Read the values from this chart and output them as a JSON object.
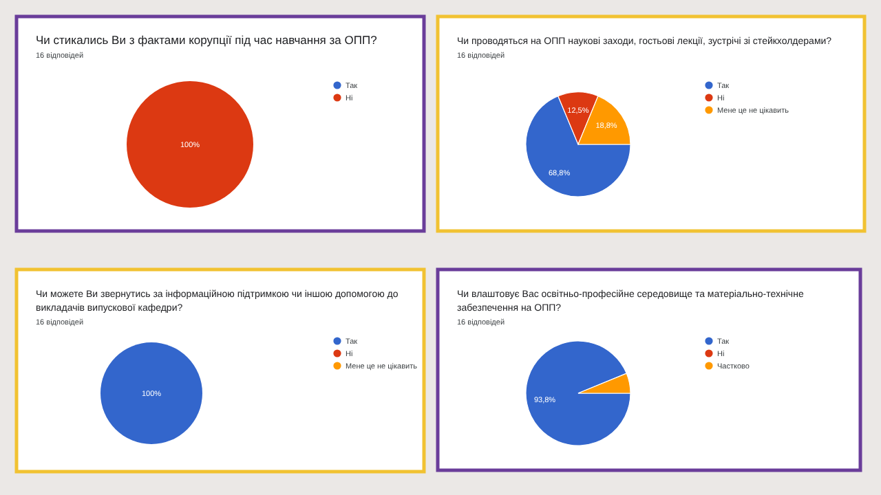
{
  "chart_data": [
    {
      "type": "pie",
      "title": "Чи стикались Ви з фактами корупції під час навчання за ОПП?",
      "subtitle": "16 відповідей",
      "categories": [
        "Так",
        "Ні"
      ],
      "values": [
        0,
        100
      ],
      "colors": [
        "#3366cc",
        "#dc3912"
      ],
      "value_labels": [
        null,
        "100%"
      ],
      "legend": "right"
    },
    {
      "type": "pie",
      "title": "Чи проводяться на ОПП наукові заходи, гостьові лекції, зустрічі зі стейкхолдерами?",
      "subtitle": "16 відповідей",
      "categories": [
        "Так",
        "Ні",
        "Мене це не цікавить"
      ],
      "values": [
        68.8,
        12.5,
        18.8
      ],
      "colors": [
        "#3366cc",
        "#dc3912",
        "#ff9900"
      ],
      "value_labels": [
        "68,8%",
        "12,5%",
        "18,8%"
      ],
      "legend": "right"
    },
    {
      "type": "pie",
      "title": "Чи можете Ви звернутись за інформаційною підтримкою чи іншою допомогою до викладачів випускової кафедри?",
      "subtitle": "16 відповідей",
      "categories": [
        "Так",
        "Ні",
        "Мене це не цікавить"
      ],
      "values": [
        100,
        0,
        0
      ],
      "colors": [
        "#3366cc",
        "#dc3912",
        "#ff9900"
      ],
      "value_labels": [
        "100%",
        null,
        null
      ],
      "legend": "right"
    },
    {
      "type": "pie",
      "title": "Чи влаштовує Вас освітньо-професійне середовище та матеріально-технічне забезпечення на ОПП?",
      "subtitle": "16 відповідей",
      "categories": [
        "Так",
        "Ні",
        "Частково"
      ],
      "values": [
        93.8,
        0,
        6.2
      ],
      "colors": [
        "#3366cc",
        "#dc3912",
        "#ff9900"
      ],
      "value_labels": [
        "93,8%",
        null,
        null
      ],
      "legend": "right"
    }
  ]
}
